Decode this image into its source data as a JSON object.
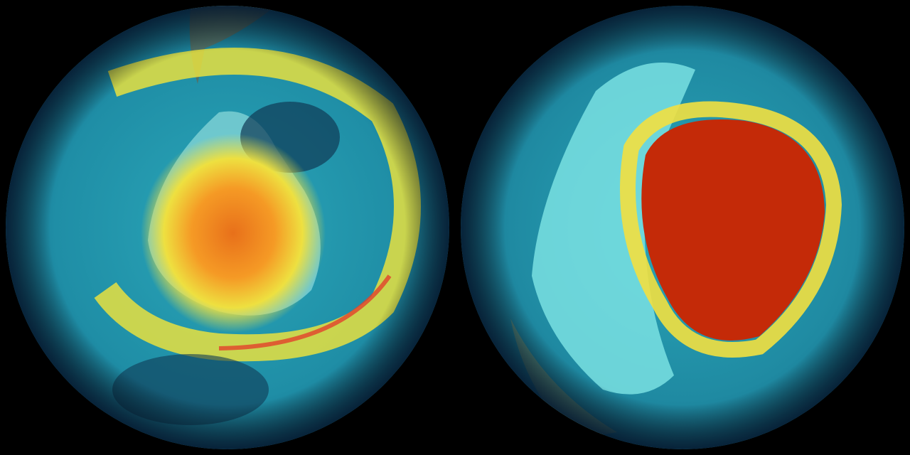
{
  "globes": [
    {
      "colors": {
        "ocean": "#1f8ea6",
        "band": "#e8e040",
        "core": "#f08a20",
        "land": "#8fdcdc",
        "rim": "#0b2d4a"
      }
    },
    {
      "colors": {
        "ocean": "#1f8aa2",
        "band": "#f2e040",
        "core": "#c42a08",
        "land": "#7fe6e6",
        "rim": "#0b2d4a"
      }
    }
  ]
}
